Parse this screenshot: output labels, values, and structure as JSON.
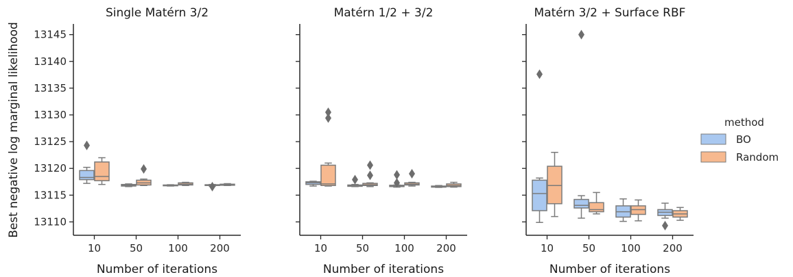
{
  "chart_data": {
    "type": "box",
    "ylabel": "Best negative log marginal likelihood",
    "ylim": [
      13107.5,
      13147
    ],
    "y_ticks": [
      "13110",
      "13115",
      "13120",
      "13125",
      "13130",
      "13135",
      "13140",
      "13145"
    ],
    "categories": [
      "10",
      "50",
      "100",
      "200"
    ],
    "xlabel": "Number of iterations",
    "legend": {
      "title": "method",
      "placement": "right",
      "entries": [
        "BO",
        "Random"
      ]
    },
    "colors": {
      "BO": "#a9c8f0",
      "Random": "#f7b98f",
      "line": "#7a7a7a",
      "flier": "#6d6d6d",
      "axis": "#262626"
    },
    "panels": [
      {
        "title": "Single Matérn 3/2",
        "series": [
          {
            "name": "BO",
            "boxes": [
              {
                "q1": 13117.9,
                "med": 13118.3,
                "q3": 13119.6,
                "whislo": 13117.2,
                "whishi": 13120.2,
                "fliers": [
                  13124.3
                ]
              },
              {
                "q1": 13116.7,
                "med": 13116.85,
                "q3": 13117.0,
                "whislo": 13116.6,
                "whishi": 13117.1,
                "fliers": []
              },
              {
                "q1": 13116.75,
                "med": 13116.8,
                "q3": 13116.9,
                "whislo": 13116.7,
                "whishi": 13116.95,
                "fliers": []
              },
              {
                "q1": 13116.8,
                "med": 13116.85,
                "q3": 13116.95,
                "whislo": 13116.7,
                "whishi": 13117.0,
                "fliers": [
                  13116.6
                ]
              }
            ]
          },
          {
            "name": "Random",
            "boxes": [
              {
                "q1": 13117.7,
                "med": 13118.5,
                "q3": 13121.2,
                "whislo": 13117.0,
                "whishi": 13122.0,
                "fliers": []
              },
              {
                "q1": 13116.9,
                "med": 13117.3,
                "q3": 13117.8,
                "whislo": 13116.8,
                "whishi": 13118.0,
                "fliers": [
                  13119.9
                ]
              },
              {
                "q1": 13116.9,
                "med": 13117.05,
                "q3": 13117.3,
                "whislo": 13116.8,
                "whishi": 13117.4,
                "fliers": []
              },
              {
                "q1": 13116.85,
                "med": 13116.95,
                "q3": 13117.05,
                "whislo": 13116.8,
                "whishi": 13117.15,
                "fliers": []
              }
            ]
          }
        ]
      },
      {
        "title": "Matérn 1/2 + 3/2",
        "series": [
          {
            "name": "BO",
            "boxes": [
              {
                "q1": 13117.0,
                "med": 13117.3,
                "q3": 13117.5,
                "whislo": 13116.7,
                "whishi": 13117.6,
                "fliers": []
              },
              {
                "q1": 13116.65,
                "med": 13116.75,
                "q3": 13116.9,
                "whislo": 13116.6,
                "whishi": 13117.0,
                "fliers": [
                  13117.9
                ]
              },
              {
                "q1": 13116.6,
                "med": 13116.7,
                "q3": 13116.85,
                "whislo": 13116.5,
                "whishi": 13116.9,
                "fliers": [
                  13117.3,
                  13118.8
                ]
              },
              {
                "q1": 13116.5,
                "med": 13116.6,
                "q3": 13116.7,
                "whislo": 13116.45,
                "whishi": 13116.8,
                "fliers": []
              }
            ]
          },
          {
            "name": "Random",
            "boxes": [
              {
                "q1": 13116.8,
                "med": 13117.1,
                "q3": 13120.6,
                "whislo": 13116.7,
                "whishi": 13121.0,
                "fliers": [
                  13129.4,
                  13130.5
                ]
              },
              {
                "q1": 13116.8,
                "med": 13116.95,
                "q3": 13117.2,
                "whislo": 13116.6,
                "whishi": 13117.3,
                "fliers": [
                  13118.7,
                  13120.6
                ]
              },
              {
                "q1": 13116.9,
                "med": 13117.05,
                "q3": 13117.3,
                "whislo": 13116.7,
                "whishi": 13117.4,
                "fliers": [
                  13119.0
                ]
              },
              {
                "q1": 13116.6,
                "med": 13116.8,
                "q3": 13117.1,
                "whislo": 13116.5,
                "whishi": 13117.4,
                "fliers": []
              }
            ]
          }
        ]
      },
      {
        "title": "Matérn 3/2 + Surface RBF",
        "series": [
          {
            "name": "BO",
            "boxes": [
              {
                "q1": 13112.1,
                "med": 13115.3,
                "q3": 13117.8,
                "whislo": 13109.9,
                "whishi": 13118.2,
                "fliers": [
                  13137.6
                ]
              },
              {
                "q1": 13112.6,
                "med": 13113.1,
                "q3": 13114.2,
                "whislo": 13110.7,
                "whishi": 13114.9,
                "fliers": [
                  13145.0
                ]
              },
              {
                "q1": 13110.9,
                "med": 13111.9,
                "q3": 13113.0,
                "whislo": 13110.1,
                "whishi": 13114.3,
                "fliers": []
              },
              {
                "q1": 13111.2,
                "med": 13111.8,
                "q3": 13112.3,
                "whislo": 13110.7,
                "whishi": 13113.5,
                "fliers": [
                  13109.3
                ]
              }
            ]
          },
          {
            "name": "Random",
            "boxes": [
              {
                "q1": 13113.4,
                "med": 13116.8,
                "q3": 13120.4,
                "whislo": 13111.0,
                "whishi": 13123.0,
                "fliers": []
              },
              {
                "q1": 13111.9,
                "med": 13112.3,
                "q3": 13113.6,
                "whislo": 13111.5,
                "whishi": 13115.5,
                "fliers": []
              },
              {
                "q1": 13111.4,
                "med": 13112.3,
                "q3": 13113.0,
                "whislo": 13110.2,
                "whishi": 13114.1,
                "fliers": []
              },
              {
                "q1": 13110.9,
                "med": 13111.5,
                "q3": 13112.1,
                "whislo": 13110.3,
                "whishi": 13112.7,
                "fliers": []
              }
            ]
          }
        ]
      }
    ]
  }
}
